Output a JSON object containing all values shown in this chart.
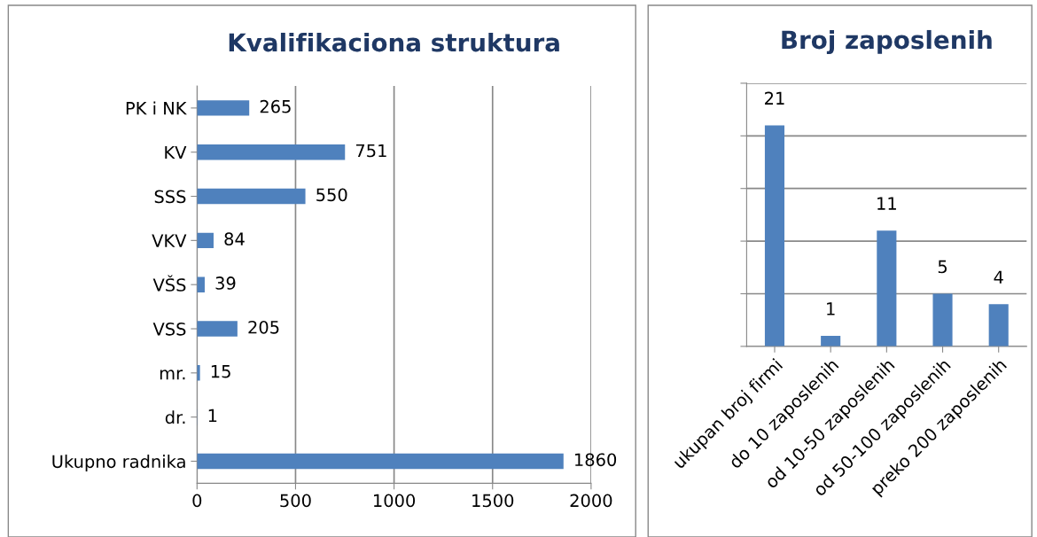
{
  "chart_data": [
    {
      "type": "bar",
      "title": "Kvalifikaciona struktura",
      "orientation": "horizontal",
      "categories": [
        "PK i NK",
        "KV",
        "SSS",
        "VKV",
        "VŠS",
        "VSS",
        "mr.",
        "dr.",
        "Ukupno radnika"
      ],
      "values": [
        265,
        751,
        550,
        84,
        39,
        205,
        15,
        1,
        1860
      ],
      "color": "#4f81bd",
      "xlim": [
        0,
        2000
      ],
      "xticks": [
        0,
        500,
        1000,
        1500,
        2000
      ],
      "grid": "x",
      "data_labels": true
    },
    {
      "type": "bar",
      "title": "Broj zaposlenih",
      "categories": [
        "ukupan broj firmi",
        "do 10 zaposlenih",
        "od 10-50 zaposlenih",
        "od 50-100 zaposlenih",
        "preko 200 zaposlenih"
      ],
      "values": [
        21,
        1,
        11,
        5,
        4
      ],
      "color": "#4f81bd",
      "ylim": [
        0,
        25
      ],
      "yticks": [
        {
          "value": 0,
          "label": null
        },
        {
          "value": 5,
          "label": null
        },
        {
          "value": 10,
          "label": null
        },
        {
          "value": 15,
          "label": null
        },
        {
          "value": 20,
          "label": null
        },
        {
          "value": 25,
          "label": null
        }
      ],
      "grid": "y",
      "data_labels": true,
      "tick_labels": "x"
    }
  ]
}
